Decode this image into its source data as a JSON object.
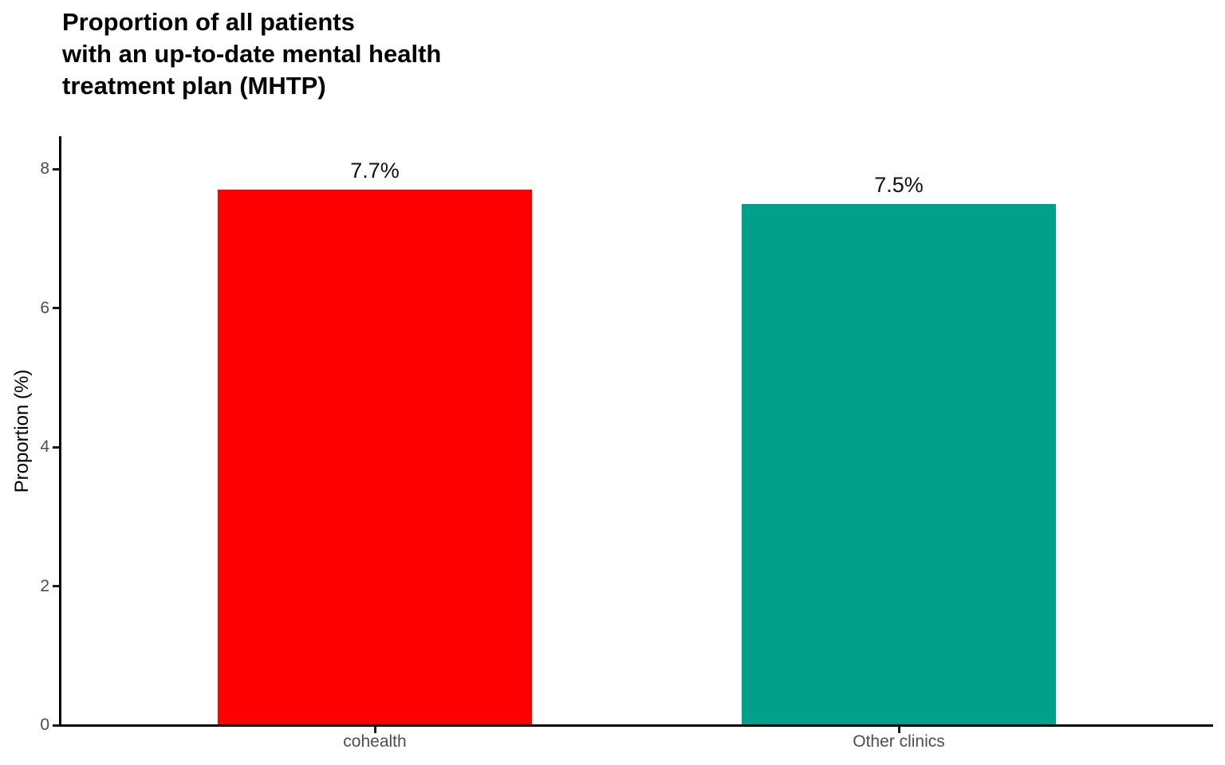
{
  "chart_data": {
    "type": "bar",
    "title": "Proportion of all patients\nwith an up-to-date mental health\ntreatment plan (MHTP)",
    "xlabel": "",
    "ylabel": "Proportion (%)",
    "categories": [
      "cohealth",
      "Other clinics"
    ],
    "values": [
      7.7,
      7.5
    ],
    "value_labels": [
      "7.7%",
      "7.5%"
    ],
    "bar_colors": [
      "#FF0000",
      "#00A08A"
    ],
    "ylim": [
      0,
      8.47
    ],
    "yticks": [
      0,
      2,
      4,
      6,
      8
    ],
    "ytick_labels": [
      "0",
      "2",
      "4",
      "6",
      "8"
    ],
    "grid": false,
    "legend_position": "none",
    "colors": {
      "axis": "#000000",
      "tick_label": "#4D4D4D",
      "title": "#000000",
      "value_label": "#111111",
      "background": "#FFFFFF"
    }
  }
}
